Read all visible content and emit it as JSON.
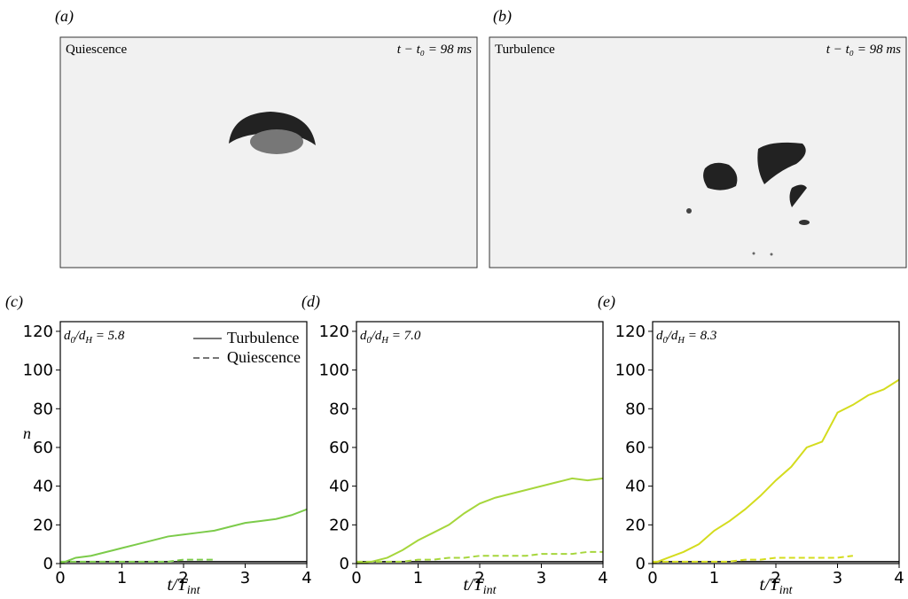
{
  "photos": [
    {
      "panel_label": "(a)",
      "condition": "Quiescence",
      "time": "t − t₀ = 98 ms"
    },
    {
      "panel_label": "(b)",
      "condition": "Turbulence",
      "time": "t − t₀ = 98 ms"
    }
  ],
  "chart_data": [
    {
      "type": "line",
      "panel_label": "(c)",
      "annotation": [
        "d",
        "0",
        "/d",
        "H",
        " = 5.8"
      ],
      "ylabel": "n",
      "xlabel": [
        "t/T",
        "int"
      ],
      "x": [
        0,
        0.25,
        0.5,
        0.75,
        1,
        1.25,
        1.5,
        1.75,
        2,
        2.25,
        2.5,
        2.75,
        3,
        3.25,
        3.5,
        3.75,
        4
      ],
      "hline": 1,
      "series": [
        {
          "color": "#7ccb4a",
          "style": "solid",
          "values": [
            0,
            3,
            4,
            6,
            8,
            10,
            12,
            14,
            15,
            16,
            17,
            19,
            21,
            22,
            23,
            25,
            28
          ]
        },
        {
          "color": "#7ccb4a",
          "style": "dashed",
          "values": [
            1,
            1,
            1,
            1,
            1,
            1,
            1,
            1,
            2,
            2,
            2,
            null,
            null,
            null,
            null,
            null,
            null
          ]
        }
      ],
      "legend": [
        {
          "name": "Turbulence",
          "style": "solid",
          "color": "#777777"
        },
        {
          "name": "Quiescence",
          "style": "dashed",
          "color": "#777777"
        }
      ],
      "xlim": [
        0,
        4
      ],
      "ylim": [
        0,
        125
      ],
      "xticks": [
        0,
        1,
        2,
        3,
        4
      ],
      "yticks": [
        0,
        20,
        40,
        60,
        80,
        100,
        120
      ]
    },
    {
      "type": "line",
      "panel_label": "(d)",
      "annotation": [
        "d",
        "0",
        "/d",
        "H",
        " = 7.0"
      ],
      "xlabel": [
        "t/T",
        "int"
      ],
      "x": [
        0,
        0.25,
        0.5,
        0.75,
        1,
        1.25,
        1.5,
        1.75,
        2,
        2.25,
        2.5,
        2.75,
        3,
        3.25,
        3.5,
        3.75,
        4
      ],
      "hline": 1,
      "series": [
        {
          "color": "#a6d63c",
          "style": "solid",
          "values": [
            0,
            1,
            3,
            7,
            12,
            16,
            20,
            26,
            31,
            34,
            36,
            38,
            40,
            42,
            44,
            43,
            44
          ]
        },
        {
          "color": "#a6d63c",
          "style": "dashed",
          "values": [
            1,
            1,
            1,
            1,
            2,
            2,
            3,
            3,
            4,
            4,
            4,
            4,
            5,
            5,
            5,
            6,
            6
          ]
        }
      ],
      "xlim": [
        0,
        4
      ],
      "ylim": [
        0,
        125
      ],
      "xticks": [
        0,
        1,
        2,
        3,
        4
      ],
      "yticks": [
        0,
        20,
        40,
        60,
        80,
        100,
        120
      ]
    },
    {
      "type": "line",
      "panel_label": "(e)",
      "annotation": [
        "d",
        "0",
        "/d",
        "H",
        " = 8.3"
      ],
      "xlabel": [
        "t/T",
        "int"
      ],
      "x": [
        0,
        0.25,
        0.5,
        0.75,
        1,
        1.25,
        1.5,
        1.75,
        2,
        2.25,
        2.5,
        2.75,
        3,
        3.25,
        3.5,
        3.75,
        4
      ],
      "hline": 1,
      "series": [
        {
          "color": "#d4dc1e",
          "style": "solid",
          "values": [
            0,
            3,
            6,
            10,
            17,
            22,
            28,
            35,
            43,
            50,
            60,
            63,
            78,
            82,
            87,
            90,
            95
          ]
        },
        {
          "color": "#d4dc1e",
          "style": "dashed",
          "values": [
            1,
            1,
            1,
            1,
            1,
            1,
            2,
            2,
            3,
            3,
            3,
            3,
            3,
            4,
            null,
            null,
            null
          ]
        }
      ],
      "xlim": [
        0,
        4
      ],
      "ylim": [
        0,
        125
      ],
      "xticks": [
        0,
        1,
        2,
        3,
        4
      ],
      "yticks": [
        0,
        20,
        40,
        60,
        80,
        100,
        120
      ]
    }
  ]
}
